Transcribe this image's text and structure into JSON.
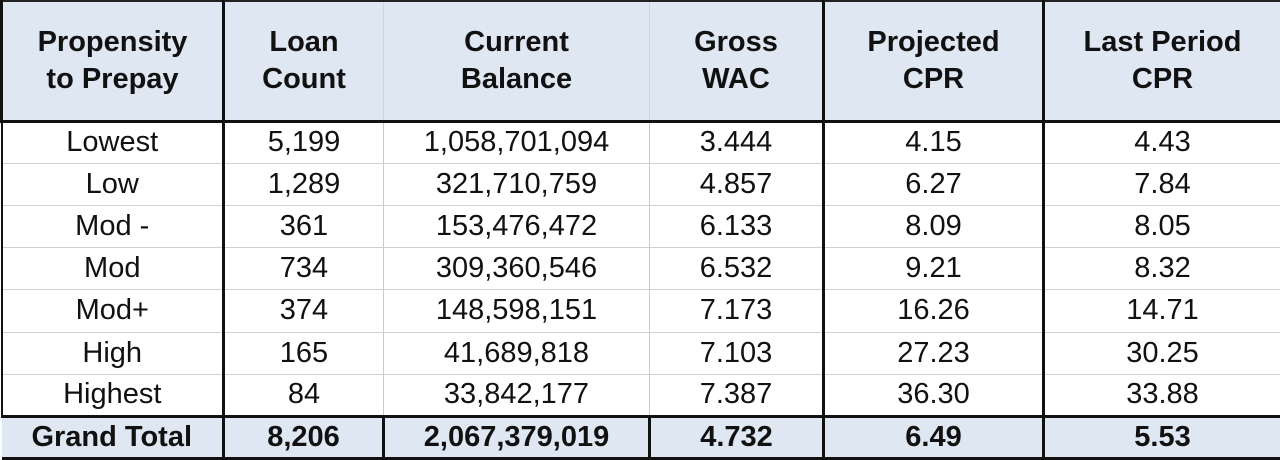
{
  "table": {
    "headers": [
      [
        "Propensity",
        "to Prepay"
      ],
      [
        "Loan",
        "Count"
      ],
      [
        "Current",
        "Balance"
      ],
      [
        "Gross",
        "WAC"
      ],
      [
        "Projected",
        "CPR"
      ],
      [
        "Last Period",
        "CPR"
      ]
    ],
    "rows": [
      [
        "Lowest",
        "5,199",
        "1,058,701,094",
        "3.444",
        "4.15",
        "4.43"
      ],
      [
        "Low",
        "1,289",
        "321,710,759",
        "4.857",
        "6.27",
        "7.84"
      ],
      [
        "Mod -",
        "361",
        "153,476,472",
        "6.133",
        "8.09",
        "8.05"
      ],
      [
        "Mod",
        "734",
        "309,360,546",
        "6.532",
        "9.21",
        "8.32"
      ],
      [
        "Mod+",
        "374",
        "148,598,151",
        "7.173",
        "16.26",
        "14.71"
      ],
      [
        "High",
        "165",
        "41,689,818",
        "7.103",
        "27.23",
        "30.25"
      ],
      [
        "Highest",
        "84",
        "33,842,177",
        "7.387",
        "36.30",
        "33.88"
      ]
    ],
    "total": [
      "Grand Total",
      "8,206",
      "2,067,379,019",
      "4.732",
      "6.49",
      "5.53"
    ]
  },
  "colors": {
    "header_bg": "#dfe7f2",
    "border": "#111111"
  }
}
